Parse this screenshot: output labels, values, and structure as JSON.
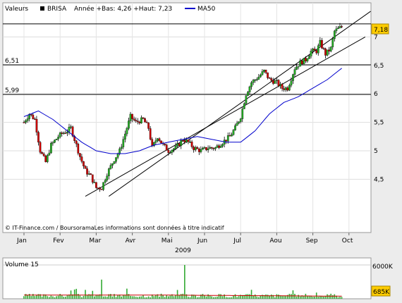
{
  "header": {
    "left_label": "Valeurs",
    "ticker": "BRISA",
    "summary": "Année +Bas: 4,26 +Haut: 7,23",
    "ma_label": "MA50",
    "ma_color": "#0000cc"
  },
  "watermark": "© IT-Finance.com / BoursoramaLes informations sont données à titre indicatif",
  "year_label": "2009",
  "volume_label": "Volume 15",
  "chart_data": {
    "type": "candlestick",
    "title": "BRISA",
    "ylim": [
      4.1,
      7.45
    ],
    "yticks": [
      4.5,
      5,
      5.5,
      6,
      6.5,
      7
    ],
    "ytick_labels": [
      "4,5",
      "5",
      "5,5",
      "6",
      "6,5",
      "7"
    ],
    "months": [
      "Jan",
      "Fev",
      "Mar",
      "Avr",
      "Mai",
      "Jun",
      "Jul",
      "Aou",
      "Sep",
      "Oct"
    ],
    "horizontal_levels": [
      {
        "value": 5.99,
        "label": "5,99"
      },
      {
        "value": 6.51,
        "label": "6,51"
      },
      {
        "value": 7.23,
        "label": ""
      }
    ],
    "last_price": {
      "value": 7.18,
      "label": "7,18"
    },
    "trend_channel": {
      "lower": {
        "start": {
          "month_index": 1.7,
          "value": 4.2
        },
        "end": {
          "month_index": 9.45,
          "value": 7.0
        }
      },
      "upper": {
        "start": {
          "month_index": 2.35,
          "value": 4.2
        },
        "end": {
          "month_index": 9.6,
          "value": 7.45
        }
      }
    },
    "price_anchors": [
      [
        0.0,
        5.5
      ],
      [
        0.15,
        5.65
      ],
      [
        0.3,
        5.55
      ],
      [
        0.45,
        5.0
      ],
      [
        0.6,
        4.8
      ],
      [
        0.75,
        5.1
      ],
      [
        0.95,
        5.25
      ],
      [
        1.05,
        5.3
      ],
      [
        1.2,
        5.35
      ],
      [
        1.3,
        5.4
      ],
      [
        1.4,
        5.2
      ],
      [
        1.55,
        4.9
      ],
      [
        1.7,
        4.65
      ],
      [
        1.85,
        4.55
      ],
      [
        2.0,
        4.35
      ],
      [
        2.15,
        4.35
      ],
      [
        2.3,
        4.6
      ],
      [
        2.5,
        4.85
      ],
      [
        2.65,
        5.0
      ],
      [
        2.8,
        5.3
      ],
      [
        2.95,
        5.6
      ],
      [
        3.1,
        5.5
      ],
      [
        3.3,
        5.55
      ],
      [
        3.45,
        5.4
      ],
      [
        3.55,
        5.05
      ],
      [
        3.7,
        5.25
      ],
      [
        3.85,
        5.1
      ],
      [
        4.0,
        5.0
      ],
      [
        4.2,
        5.05
      ],
      [
        4.4,
        5.2
      ],
      [
        4.55,
        5.15
      ],
      [
        4.7,
        5.05
      ],
      [
        4.9,
        5.0
      ],
      [
        5.1,
        5.05
      ],
      [
        5.3,
        5.05
      ],
      [
        5.5,
        5.15
      ],
      [
        5.7,
        5.25
      ],
      [
        5.85,
        5.4
      ],
      [
        6.0,
        5.6
      ],
      [
        6.15,
        6.0
      ],
      [
        6.3,
        6.2
      ],
      [
        6.5,
        6.3
      ],
      [
        6.65,
        6.4
      ],
      [
        6.8,
        6.25
      ],
      [
        7.0,
        6.2
      ],
      [
        7.15,
        6.1
      ],
      [
        7.3,
        6.1
      ],
      [
        7.5,
        6.45
      ],
      [
        7.65,
        6.55
      ],
      [
        7.8,
        6.6
      ],
      [
        7.95,
        6.75
      ],
      [
        8.1,
        6.75
      ],
      [
        8.2,
        6.9
      ],
      [
        8.35,
        6.7
      ],
      [
        8.5,
        6.8
      ],
      [
        8.6,
        7.1
      ],
      [
        8.8,
        7.18
      ]
    ],
    "ma50": [
      [
        0.0,
        5.6
      ],
      [
        0.4,
        5.7
      ],
      [
        0.8,
        5.55
      ],
      [
        1.2,
        5.35
      ],
      [
        1.6,
        5.15
      ],
      [
        2.0,
        5.0
      ],
      [
        2.4,
        4.95
      ],
      [
        2.8,
        4.95
      ],
      [
        3.2,
        5.0
      ],
      [
        3.6,
        5.1
      ],
      [
        4.0,
        5.15
      ],
      [
        4.4,
        5.2
      ],
      [
        4.8,
        5.25
      ],
      [
        5.2,
        5.2
      ],
      [
        5.6,
        5.15
      ],
      [
        6.0,
        5.15
      ],
      [
        6.4,
        5.35
      ],
      [
        6.8,
        5.65
      ],
      [
        7.2,
        5.85
      ],
      [
        7.6,
        5.95
      ],
      [
        8.0,
        6.1
      ],
      [
        8.4,
        6.25
      ],
      [
        8.8,
        6.45
      ]
    ],
    "volume": {
      "ylim": [
        0,
        6500
      ],
      "yticks": [
        6000
      ],
      "ytick_labels": [
        "6000K"
      ],
      "last_label": "685K"
    }
  }
}
